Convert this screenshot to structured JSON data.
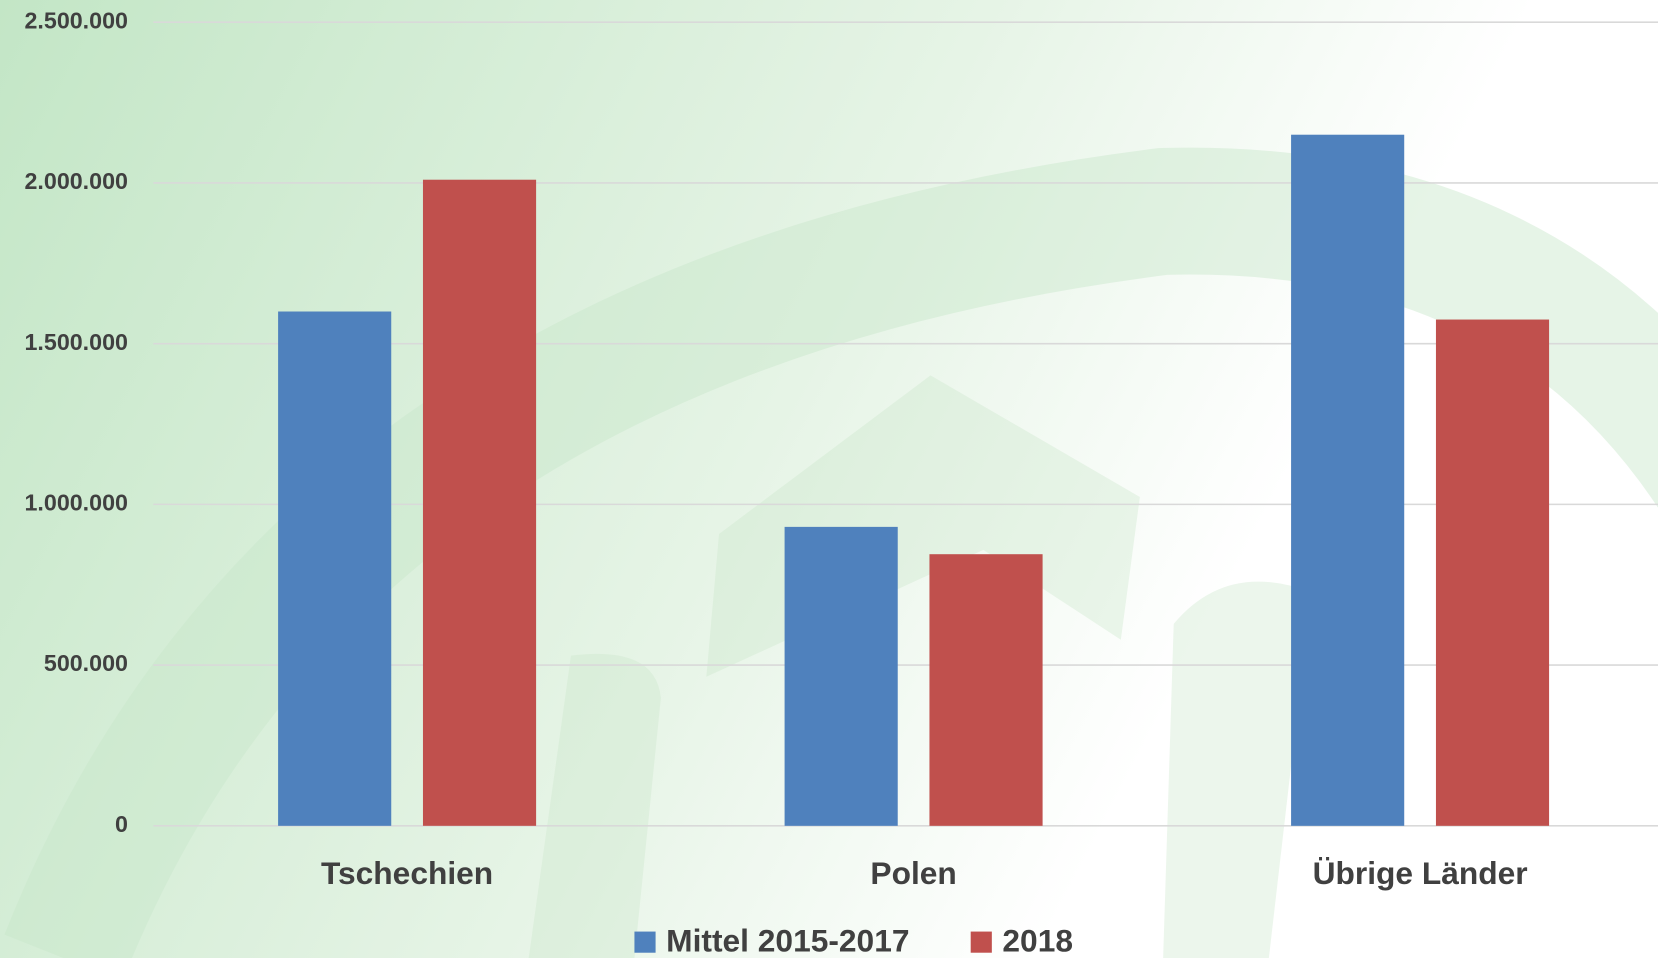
{
  "chart_data": {
    "type": "bar",
    "categories": [
      "Tschechien",
      "Polen",
      "Übrige Länder"
    ],
    "series": [
      {
        "name": "Mittel 2015-2017",
        "color": "#4f81bd",
        "values": [
          1600000,
          930000,
          2150000
        ]
      },
      {
        "name": "2018",
        "color": "#c0504d",
        "values": [
          2010000,
          845000,
          1575000
        ]
      }
    ],
    "ylim": [
      0,
      2500000
    ],
    "yticks": [
      0,
      {
        "value": 500000,
        "label": "500.000"
      },
      {
        "value": 1000000,
        "label": "1.000.000"
      },
      {
        "value": 1500000,
        "label": "1.500.000"
      },
      {
        "value": 2000000,
        "label": "2.000.000"
      },
      {
        "value": 2500000,
        "label": "2.500.000"
      }
    ],
    "grid": true,
    "legend": "bottom"
  }
}
